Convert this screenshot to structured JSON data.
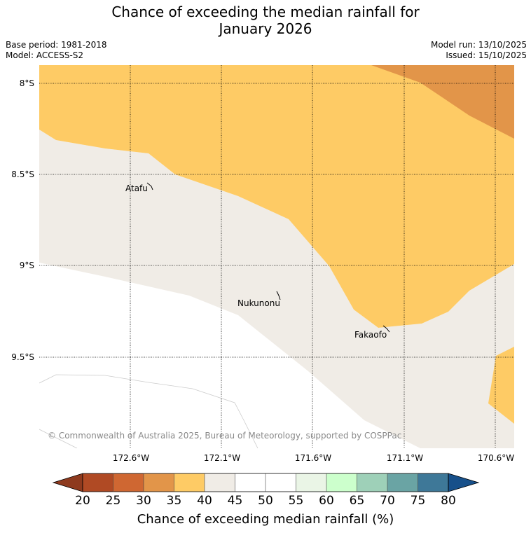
{
  "title": {
    "line1": "Chance of exceeding the median rainfall for",
    "line2": "January 2026"
  },
  "meta": {
    "base_period": "Base period: 1981-2018",
    "model": "Model: ACCESS-S2",
    "model_run": "Model run: 13/10/2025",
    "issued": "Issued: 15/10/2025"
  },
  "map": {
    "lat_labels": [
      "8°S",
      "8.5°S",
      "9°S",
      "9.5°S"
    ],
    "lon_labels": [
      "172.6°W",
      "172.1°W",
      "171.6°W",
      "171.1°W",
      "170.6°W"
    ],
    "places": [
      "Atafu",
      "Nukunonu",
      "Fakaofo"
    ],
    "copyright": "© Commonwealth of Australia 2025, Bureau of Meteorology, supported by COSPPac"
  },
  "colorbar": {
    "title": "Chance of exceeding median rainfall (%)",
    "ticks": [
      "20",
      "25",
      "30",
      "35",
      "40",
      "45",
      "50",
      "55",
      "60",
      "65",
      "70",
      "75",
      "80"
    ],
    "colors": {
      "extend_low": "#8e3a1e",
      "c20_25": "#b04a24",
      "c25_30": "#cf6732",
      "c30_35": "#e29549",
      "c35_40": "#fecb65",
      "c40_45": "#f0ece6",
      "c45_50": "#ffffff",
      "c50_55": "#ffffff",
      "c55_60": "#eaf5e6",
      "c60_65": "#ccffcc",
      "c65_70": "#9ed0b8",
      "c70_75": "#6aa4a4",
      "c75_80": "#3e7898",
      "extend_high": "#17508a"
    }
  }
}
